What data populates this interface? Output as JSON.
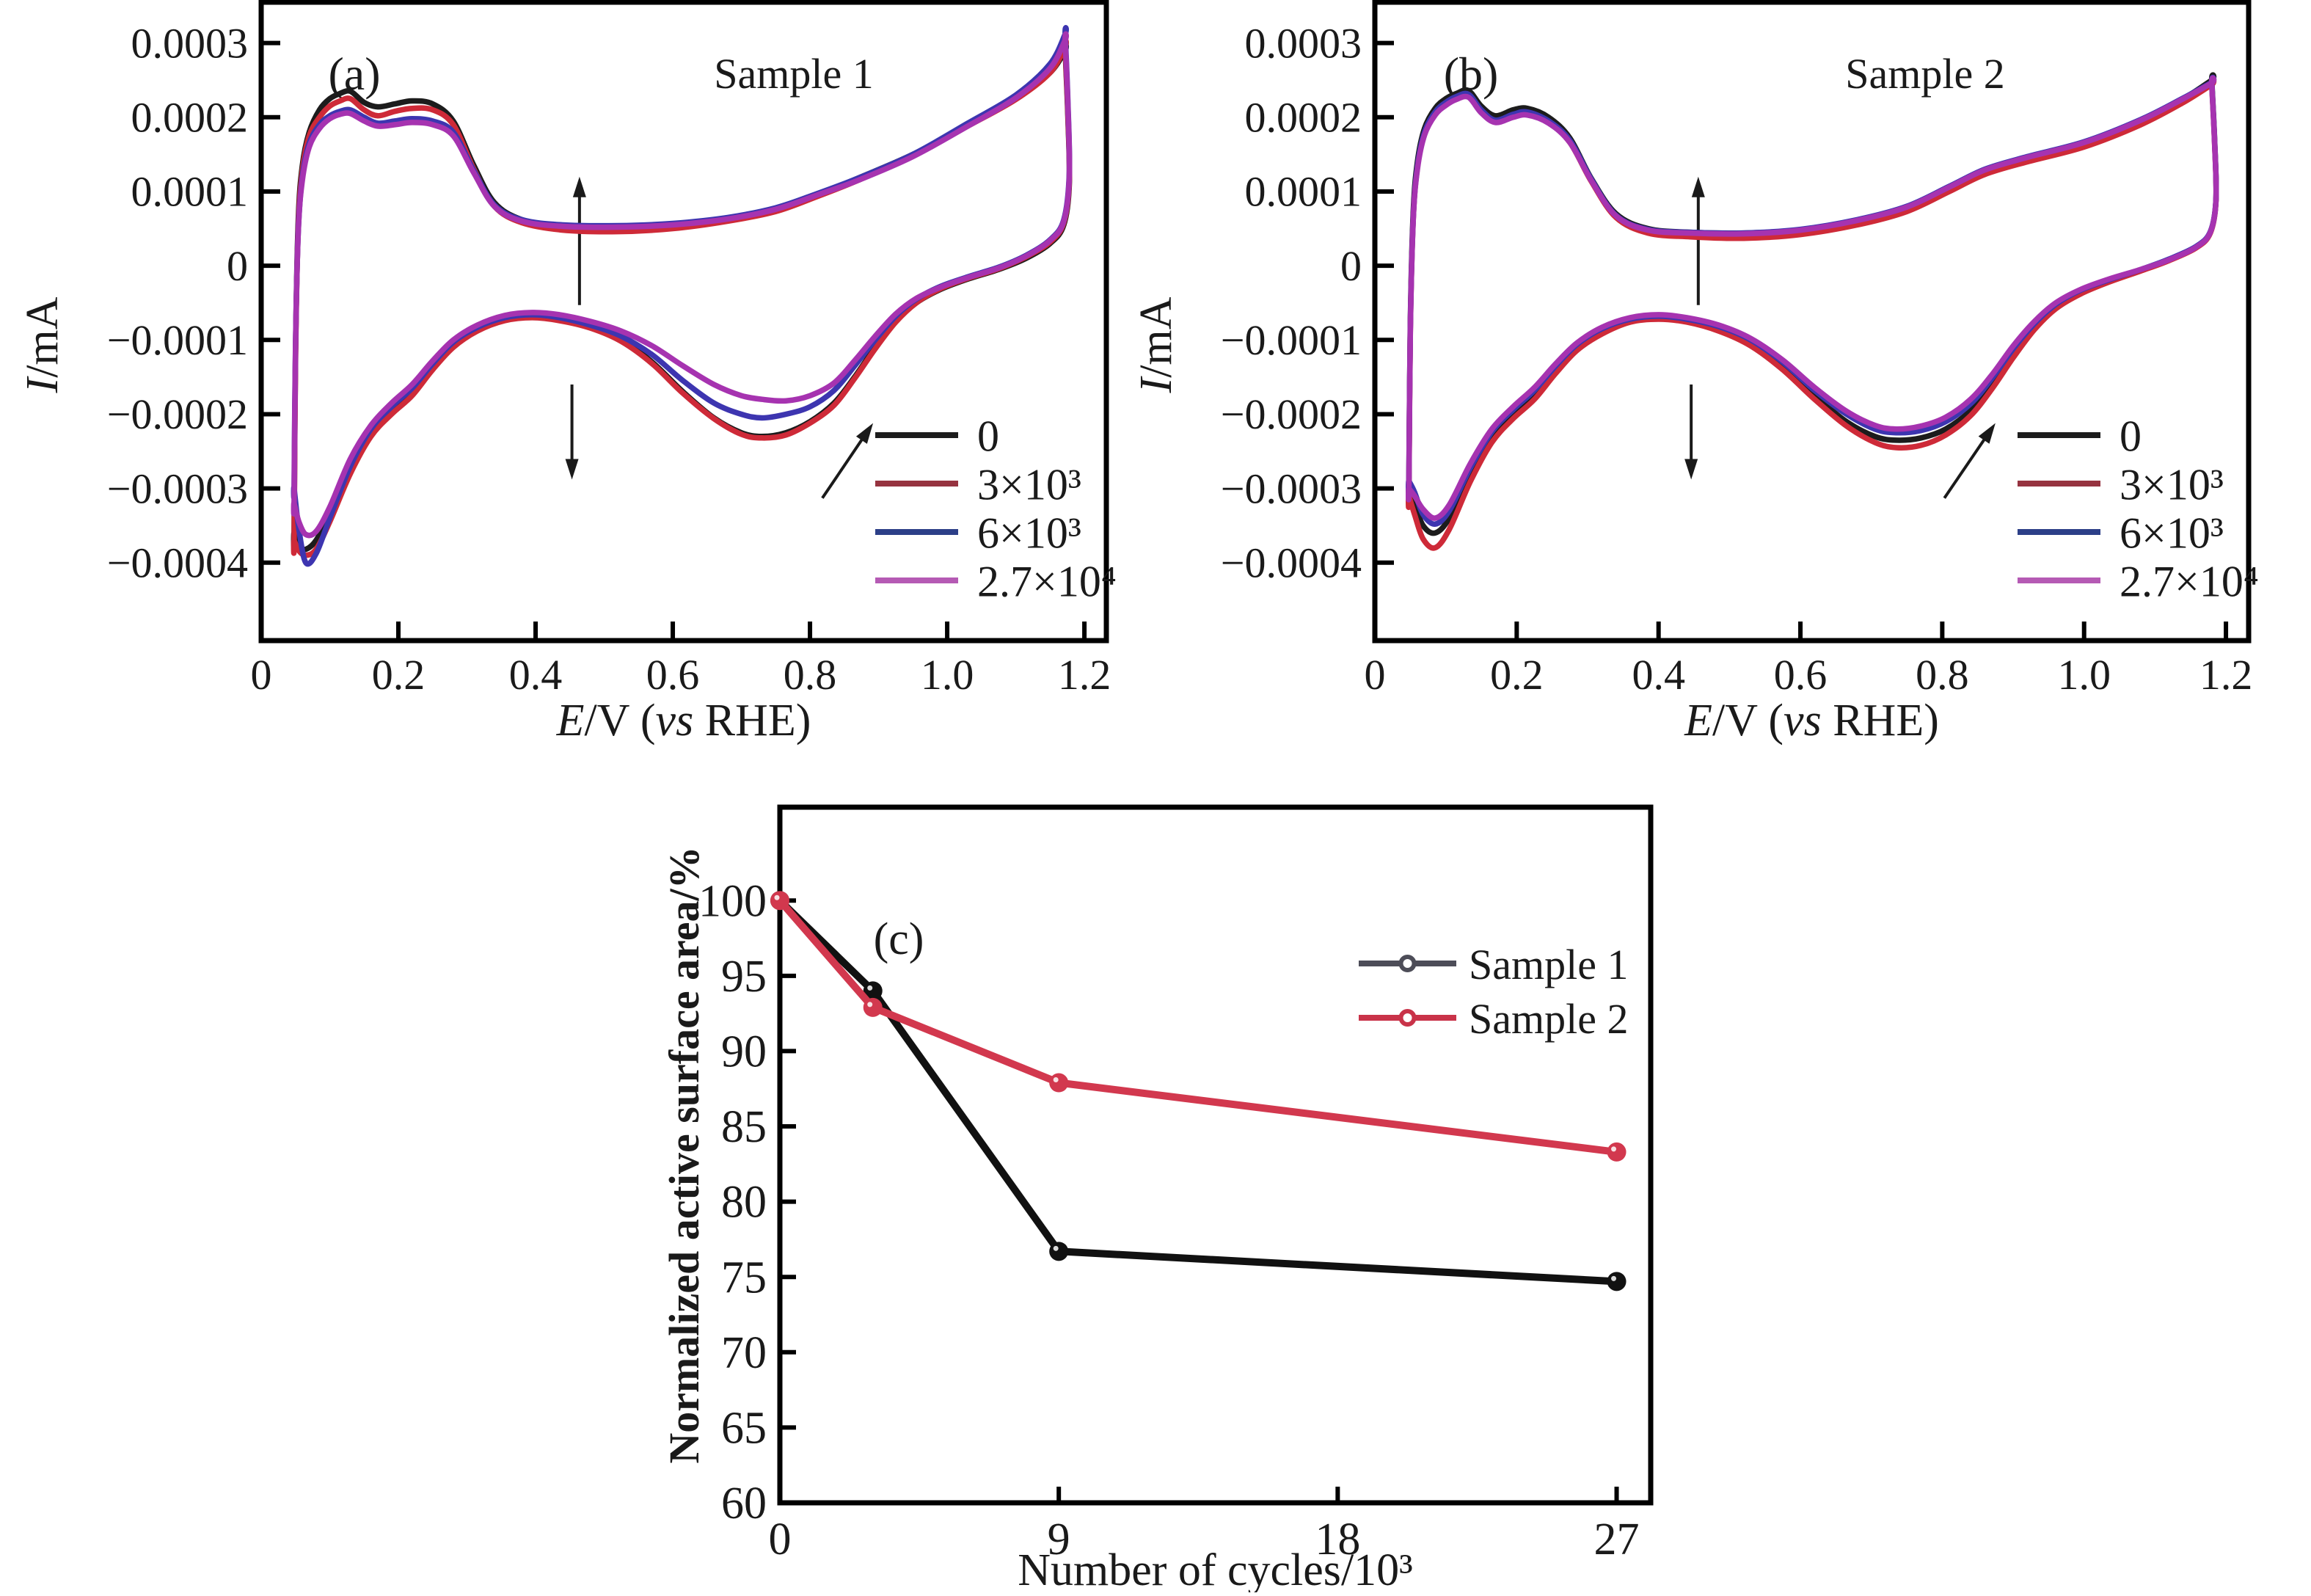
{
  "figure": {
    "background": "#ffffff"
  },
  "chart_data": [
    {
      "id": "a",
      "type": "line",
      "subtype": "cyclic-voltammogram",
      "letter": "(a)",
      "title": "Sample 1",
      "xlabel": "*E*/V (*vs* RHE)",
      "ylabel": "*I*/mA",
      "x_range": [
        0,
        1.232
      ],
      "y_range": [
        -5.05,
        3.55
      ],
      "i_scale": 0.0001,
      "grid": false,
      "x_ticks": [
        {
          "v": 0,
          "label": "0"
        },
        {
          "v": 0.2,
          "label": "0.2"
        },
        {
          "v": 0.4,
          "label": "0.4"
        },
        {
          "v": 0.6,
          "label": "0.6"
        },
        {
          "v": 0.8,
          "label": "0.8"
        },
        {
          "v": 1.0,
          "label": "1.0"
        },
        {
          "v": 1.2,
          "label": "1.2"
        }
      ],
      "y_ticks": [
        {
          "v": 3,
          "label": "0.0003"
        },
        {
          "v": 2,
          "label": "0.0002"
        },
        {
          "v": 1,
          "label": "0.0001"
        },
        {
          "v": 0,
          "label": "0"
        },
        {
          "v": -1,
          "label": "−0.0001"
        },
        {
          "v": -2,
          "label": "−0.0002"
        },
        {
          "v": -3,
          "label": "−0.0003"
        },
        {
          "v": -4,
          "label": "−0.0004"
        }
      ],
      "e_up": [
        0.048,
        0.05,
        0.054,
        0.06,
        0.07,
        0.085,
        0.1,
        0.115,
        0.13,
        0.15,
        0.17,
        0.195,
        0.22,
        0.25,
        0.28,
        0.31,
        0.34,
        0.38,
        0.44,
        0.52,
        0.6,
        0.68,
        0.75,
        0.81,
        0.87,
        0.95,
        1.03,
        1.1,
        1.15,
        1.172
      ],
      "e_down": [
        1.172,
        1.176,
        1.178,
        1.17,
        1.15,
        1.115,
        1.075,
        1.03,
        0.99,
        0.955,
        0.925,
        0.895,
        0.865,
        0.835,
        0.8,
        0.765,
        0.73,
        0.7,
        0.66,
        0.615,
        0.57,
        0.525,
        0.48,
        0.435,
        0.395,
        0.355,
        0.315,
        0.28,
        0.25,
        0.22,
        0.19,
        0.16,
        0.13,
        0.1,
        0.08,
        0.065,
        0.055,
        0.048
      ],
      "legend_position": "right-middle",
      "series": [
        {
          "name": "0",
          "color": "#1c1c1c",
          "legend_color": "#1c1c1c",
          "i_up": [
            -3.6,
            -1.2,
            0.6,
            1.35,
            1.8,
            2.1,
            2.25,
            2.32,
            2.35,
            2.2,
            2.14,
            2.18,
            2.22,
            2.18,
            1.95,
            1.35,
            0.85,
            0.62,
            0.52,
            0.5,
            0.53,
            0.62,
            0.75,
            0.95,
            1.18,
            1.5,
            1.9,
            2.25,
            2.6,
            2.9
          ],
          "i_down": [
            2.9,
            2.0,
            1.1,
            0.55,
            0.3,
            0.1,
            -0.05,
            -0.18,
            -0.32,
            -0.5,
            -0.75,
            -1.1,
            -1.5,
            -1.85,
            -2.1,
            -2.25,
            -2.3,
            -2.25,
            -2.05,
            -1.7,
            -1.3,
            -1.0,
            -0.82,
            -0.72,
            -0.68,
            -0.72,
            -0.85,
            -1.05,
            -1.35,
            -1.7,
            -1.95,
            -2.25,
            -2.75,
            -3.35,
            -3.7,
            -3.82,
            -3.78,
            -3.6
          ]
        },
        {
          "name": "3×10³",
          "color": "#ce2a38",
          "legend_color": "#963340",
          "i_up": [
            -3.7,
            -1.3,
            0.5,
            1.28,
            1.75,
            2.0,
            2.15,
            2.22,
            2.25,
            2.1,
            2.02,
            2.08,
            2.12,
            2.1,
            1.9,
            1.3,
            0.8,
            0.58,
            0.48,
            0.46,
            0.5,
            0.6,
            0.73,
            0.93,
            1.15,
            1.48,
            1.88,
            2.24,
            2.6,
            2.95
          ],
          "i_down": [
            2.95,
            2.05,
            1.15,
            0.58,
            0.32,
            0.12,
            -0.04,
            -0.17,
            -0.31,
            -0.5,
            -0.76,
            -1.12,
            -1.52,
            -1.88,
            -2.12,
            -2.28,
            -2.32,
            -2.27,
            -2.06,
            -1.72,
            -1.32,
            -1.02,
            -0.84,
            -0.74,
            -0.7,
            -0.74,
            -0.88,
            -1.1,
            -1.4,
            -1.75,
            -2.0,
            -2.3,
            -2.8,
            -3.45,
            -3.82,
            -3.9,
            -3.84,
            -3.7
          ]
        },
        {
          "name": "6×10³",
          "color": "#3d35b0",
          "legend_color": "#2c3f88",
          "i_up": [
            -3.0,
            -1.1,
            0.45,
            1.2,
            1.65,
            1.9,
            2.02,
            2.08,
            2.1,
            2.0,
            1.92,
            1.95,
            1.98,
            1.95,
            1.8,
            1.28,
            0.82,
            0.62,
            0.55,
            0.54,
            0.57,
            0.65,
            0.78,
            0.97,
            1.18,
            1.5,
            1.92,
            2.3,
            2.72,
            3.12
          ],
          "i_down": [
            3.12,
            2.2,
            1.25,
            0.62,
            0.35,
            0.14,
            -0.02,
            -0.15,
            -0.28,
            -0.45,
            -0.68,
            -1.0,
            -1.35,
            -1.68,
            -1.9,
            -2.0,
            -2.05,
            -2.0,
            -1.85,
            -1.55,
            -1.2,
            -0.95,
            -0.8,
            -0.7,
            -0.66,
            -0.7,
            -0.83,
            -1.03,
            -1.32,
            -1.65,
            -1.9,
            -2.2,
            -2.7,
            -3.4,
            -3.88,
            -4.0,
            -3.55,
            -3.0
          ]
        },
        {
          "name": "2.7×10⁴",
          "color": "#a633b0",
          "legend_color": "#b55ab4",
          "i_up": [
            -3.2,
            -1.15,
            0.45,
            1.15,
            1.6,
            1.85,
            1.98,
            2.04,
            2.05,
            1.95,
            1.88,
            1.9,
            1.93,
            1.9,
            1.75,
            1.25,
            0.8,
            0.6,
            0.53,
            0.52,
            0.55,
            0.63,
            0.76,
            0.95,
            1.15,
            1.47,
            1.88,
            2.26,
            2.66,
            3.04
          ],
          "i_down": [
            3.04,
            2.15,
            1.2,
            0.6,
            0.34,
            0.13,
            -0.03,
            -0.16,
            -0.29,
            -0.44,
            -0.65,
            -0.95,
            -1.28,
            -1.58,
            -1.75,
            -1.82,
            -1.8,
            -1.75,
            -1.6,
            -1.35,
            -1.08,
            -0.88,
            -0.75,
            -0.66,
            -0.63,
            -0.67,
            -0.8,
            -1.0,
            -1.28,
            -1.6,
            -1.85,
            -2.15,
            -2.6,
            -3.25,
            -3.58,
            -3.62,
            -3.45,
            -3.2
          ]
        }
      ],
      "arrows": [
        {
          "x1": 0.464,
          "y1": -0.53,
          "x2": 0.464,
          "y2": 1.2
        },
        {
          "x1": 0.453,
          "y1": -1.6,
          "x2": 0.453,
          "y2": -2.88
        },
        {
          "x1": 0.818,
          "y1": -3.13,
          "x2": 0.892,
          "y2": -2.12
        }
      ]
    },
    {
      "id": "b",
      "type": "line",
      "subtype": "cyclic-voltammogram",
      "letter": "(b)",
      "title": "Sample 2",
      "xlabel": "*E*/V (*vs* RHE)",
      "ylabel": "*I*/mA",
      "x_range": [
        0,
        1.232
      ],
      "y_range": [
        -5.05,
        3.55
      ],
      "i_scale": 0.0001,
      "grid": false,
      "x_ticks": [
        {
          "v": 0,
          "label": "0"
        },
        {
          "v": 0.2,
          "label": "0.2"
        },
        {
          "v": 0.4,
          "label": "0.4"
        },
        {
          "v": 0.6,
          "label": "0.6"
        },
        {
          "v": 0.8,
          "label": "0.8"
        },
        {
          "v": 1.0,
          "label": "1.0"
        },
        {
          "v": 1.2,
          "label": "1.2"
        }
      ],
      "y_ticks": [
        {
          "v": 3,
          "label": "0.0003"
        },
        {
          "v": 2,
          "label": "0.0002"
        },
        {
          "v": 1,
          "label": "0.0001"
        },
        {
          "v": 0,
          "label": "0"
        },
        {
          "v": -1,
          "label": "−0.0001"
        },
        {
          "v": -2,
          "label": "−0.0002"
        },
        {
          "v": -3,
          "label": "−0.0003"
        },
        {
          "v": -4,
          "label": "−0.0004"
        }
      ],
      "e_up": [
        0.048,
        0.05,
        0.054,
        0.06,
        0.07,
        0.085,
        0.1,
        0.115,
        0.132,
        0.15,
        0.17,
        0.195,
        0.215,
        0.245,
        0.275,
        0.305,
        0.34,
        0.385,
        0.445,
        0.52,
        0.6,
        0.68,
        0.75,
        0.81,
        0.86,
        0.92,
        1.0,
        1.08,
        1.14,
        1.18
      ],
      "e_down": [
        1.18,
        1.184,
        1.186,
        1.178,
        1.158,
        1.12,
        1.08,
        1.035,
        0.995,
        0.96,
        0.93,
        0.9,
        0.87,
        0.84,
        0.805,
        0.77,
        0.735,
        0.705,
        0.665,
        0.62,
        0.575,
        0.53,
        0.485,
        0.44,
        0.4,
        0.36,
        0.32,
        0.285,
        0.255,
        0.225,
        0.195,
        0.165,
        0.135,
        0.105,
        0.085,
        0.068,
        0.056,
        0.048
      ],
      "legend_position": "right-middle",
      "series": [
        {
          "name": "0",
          "color": "#1c1c1c",
          "legend_color": "#1c1c1c",
          "i_up": [
            -2.95,
            -0.8,
            0.7,
            1.4,
            1.85,
            2.12,
            2.25,
            2.32,
            2.36,
            2.15,
            2.02,
            2.1,
            2.12,
            2.0,
            1.72,
            1.18,
            0.7,
            0.5,
            0.45,
            0.44,
            0.48,
            0.6,
            0.78,
            1.05,
            1.28,
            1.45,
            1.65,
            1.95,
            2.25,
            2.5
          ],
          "i_down": [
            2.5,
            1.7,
            0.9,
            0.45,
            0.25,
            0.08,
            -0.06,
            -0.2,
            -0.35,
            -0.55,
            -0.82,
            -1.18,
            -1.6,
            -1.95,
            -2.2,
            -2.32,
            -2.35,
            -2.3,
            -2.1,
            -1.75,
            -1.35,
            -1.05,
            -0.85,
            -0.74,
            -0.7,
            -0.74,
            -0.88,
            -1.1,
            -1.4,
            -1.75,
            -2.0,
            -2.3,
            -2.8,
            -3.4,
            -3.6,
            -3.5,
            -3.2,
            -2.95
          ]
        },
        {
          "name": "3×10³",
          "color": "#ce2a38",
          "legend_color": "#963340",
          "i_up": [
            -3.1,
            -0.9,
            0.6,
            1.32,
            1.78,
            2.05,
            2.18,
            2.26,
            2.29,
            2.08,
            1.94,
            2.02,
            2.05,
            1.93,
            1.66,
            1.14,
            0.65,
            0.44,
            0.39,
            0.37,
            0.42,
            0.55,
            0.73,
            1.0,
            1.23,
            1.4,
            1.6,
            1.9,
            2.2,
            2.44
          ],
          "i_down": [
            2.44,
            1.65,
            0.88,
            0.44,
            0.24,
            0.07,
            -0.07,
            -0.22,
            -0.38,
            -0.58,
            -0.86,
            -1.24,
            -1.66,
            -2.02,
            -2.28,
            -2.42,
            -2.45,
            -2.38,
            -2.16,
            -1.8,
            -1.4,
            -1.08,
            -0.88,
            -0.76,
            -0.72,
            -0.76,
            -0.92,
            -1.14,
            -1.45,
            -1.8,
            -2.06,
            -2.38,
            -2.9,
            -3.55,
            -3.8,
            -3.68,
            -3.35,
            -3.1
          ]
        },
        {
          "name": "6×10³",
          "color": "#3d35b0",
          "legend_color": "#2c3f88",
          "i_up": [
            -2.9,
            -0.85,
            0.62,
            1.34,
            1.8,
            2.07,
            2.2,
            2.28,
            2.31,
            2.1,
            1.96,
            2.04,
            2.07,
            1.95,
            1.69,
            1.17,
            0.68,
            0.49,
            0.45,
            0.44,
            0.49,
            0.62,
            0.8,
            1.07,
            1.3,
            1.47,
            1.67,
            1.97,
            2.26,
            2.47
          ],
          "i_down": [
            2.47,
            1.68,
            0.9,
            0.46,
            0.26,
            0.09,
            -0.05,
            -0.19,
            -0.33,
            -0.52,
            -0.78,
            -1.12,
            -1.52,
            -1.86,
            -2.1,
            -2.22,
            -2.25,
            -2.2,
            -2.0,
            -1.68,
            -1.3,
            -1.0,
            -0.82,
            -0.72,
            -0.68,
            -0.72,
            -0.85,
            -1.06,
            -1.35,
            -1.68,
            -1.94,
            -2.24,
            -2.72,
            -3.3,
            -3.48,
            -3.35,
            -3.05,
            -2.9
          ]
        },
        {
          "name": "2.7×10⁴",
          "color": "#a633b0",
          "legend_color": "#b55ab4",
          "i_up": [
            -3.0,
            -0.9,
            0.6,
            1.3,
            1.76,
            2.03,
            2.16,
            2.24,
            2.27,
            2.06,
            1.93,
            2.0,
            2.03,
            1.92,
            1.66,
            1.15,
            0.67,
            0.48,
            0.44,
            0.43,
            0.48,
            0.61,
            0.79,
            1.06,
            1.29,
            1.46,
            1.66,
            1.96,
            2.25,
            2.46
          ],
          "i_down": [
            2.46,
            1.66,
            0.89,
            0.45,
            0.25,
            0.08,
            -0.05,
            -0.18,
            -0.32,
            -0.5,
            -0.75,
            -1.08,
            -1.47,
            -1.8,
            -2.04,
            -2.16,
            -2.2,
            -2.15,
            -1.96,
            -1.64,
            -1.27,
            -0.98,
            -0.8,
            -0.7,
            -0.66,
            -0.7,
            -0.83,
            -1.04,
            -1.32,
            -1.64,
            -1.9,
            -2.2,
            -2.66,
            -3.22,
            -3.4,
            -3.28,
            -3.1,
            -3.0
          ]
        }
      ],
      "arrows": [
        {
          "x1": 0.456,
          "y1": -0.53,
          "x2": 0.456,
          "y2": 1.2
        },
        {
          "x1": 0.446,
          "y1": -1.6,
          "x2": 0.446,
          "y2": -2.88
        },
        {
          "x1": 0.803,
          "y1": -3.13,
          "x2": 0.875,
          "y2": -2.12
        }
      ]
    },
    {
      "id": "c",
      "type": "line",
      "letter": "(c)",
      "title": "",
      "xlabel": "Number of cycles/10³",
      "ylabel": "Normalized active surface area/%",
      "x_range": [
        0,
        28.1
      ],
      "y_range": [
        60,
        106.2
      ],
      "grid": false,
      "x_ticks": [
        {
          "v": 0,
          "label": "0"
        },
        {
          "v": 9,
          "label": "9"
        },
        {
          "v": 18,
          "label": "18"
        },
        {
          "v": 27,
          "label": "27"
        }
      ],
      "y_ticks": [
        {
          "v": 100,
          "label": "100"
        },
        {
          "v": 95,
          "label": "95"
        },
        {
          "v": 90,
          "label": "90"
        },
        {
          "v": 85,
          "label": "85"
        },
        {
          "v": 80,
          "label": "80"
        },
        {
          "v": 75,
          "label": "75"
        },
        {
          "v": 70,
          "label": "70"
        },
        {
          "v": 65,
          "label": "65"
        },
        {
          "v": 60,
          "label": "60"
        }
      ],
      "legend_position": "top-right",
      "series": [
        {
          "name": "Sample 1",
          "color": "#111111",
          "legend_color": "#4d4d58",
          "points": [
            [
              0,
              100
            ],
            [
              3,
              94
            ],
            [
              9,
              76.7
            ],
            [
              27,
              74.7
            ]
          ]
        },
        {
          "name": "Sample 2",
          "color": "#d2384e",
          "legend_color": "#c93349",
          "points": [
            [
              0,
              100
            ],
            [
              3,
              92.9
            ],
            [
              9,
              87.9
            ],
            [
              27,
              83.3
            ]
          ]
        }
      ]
    }
  ]
}
